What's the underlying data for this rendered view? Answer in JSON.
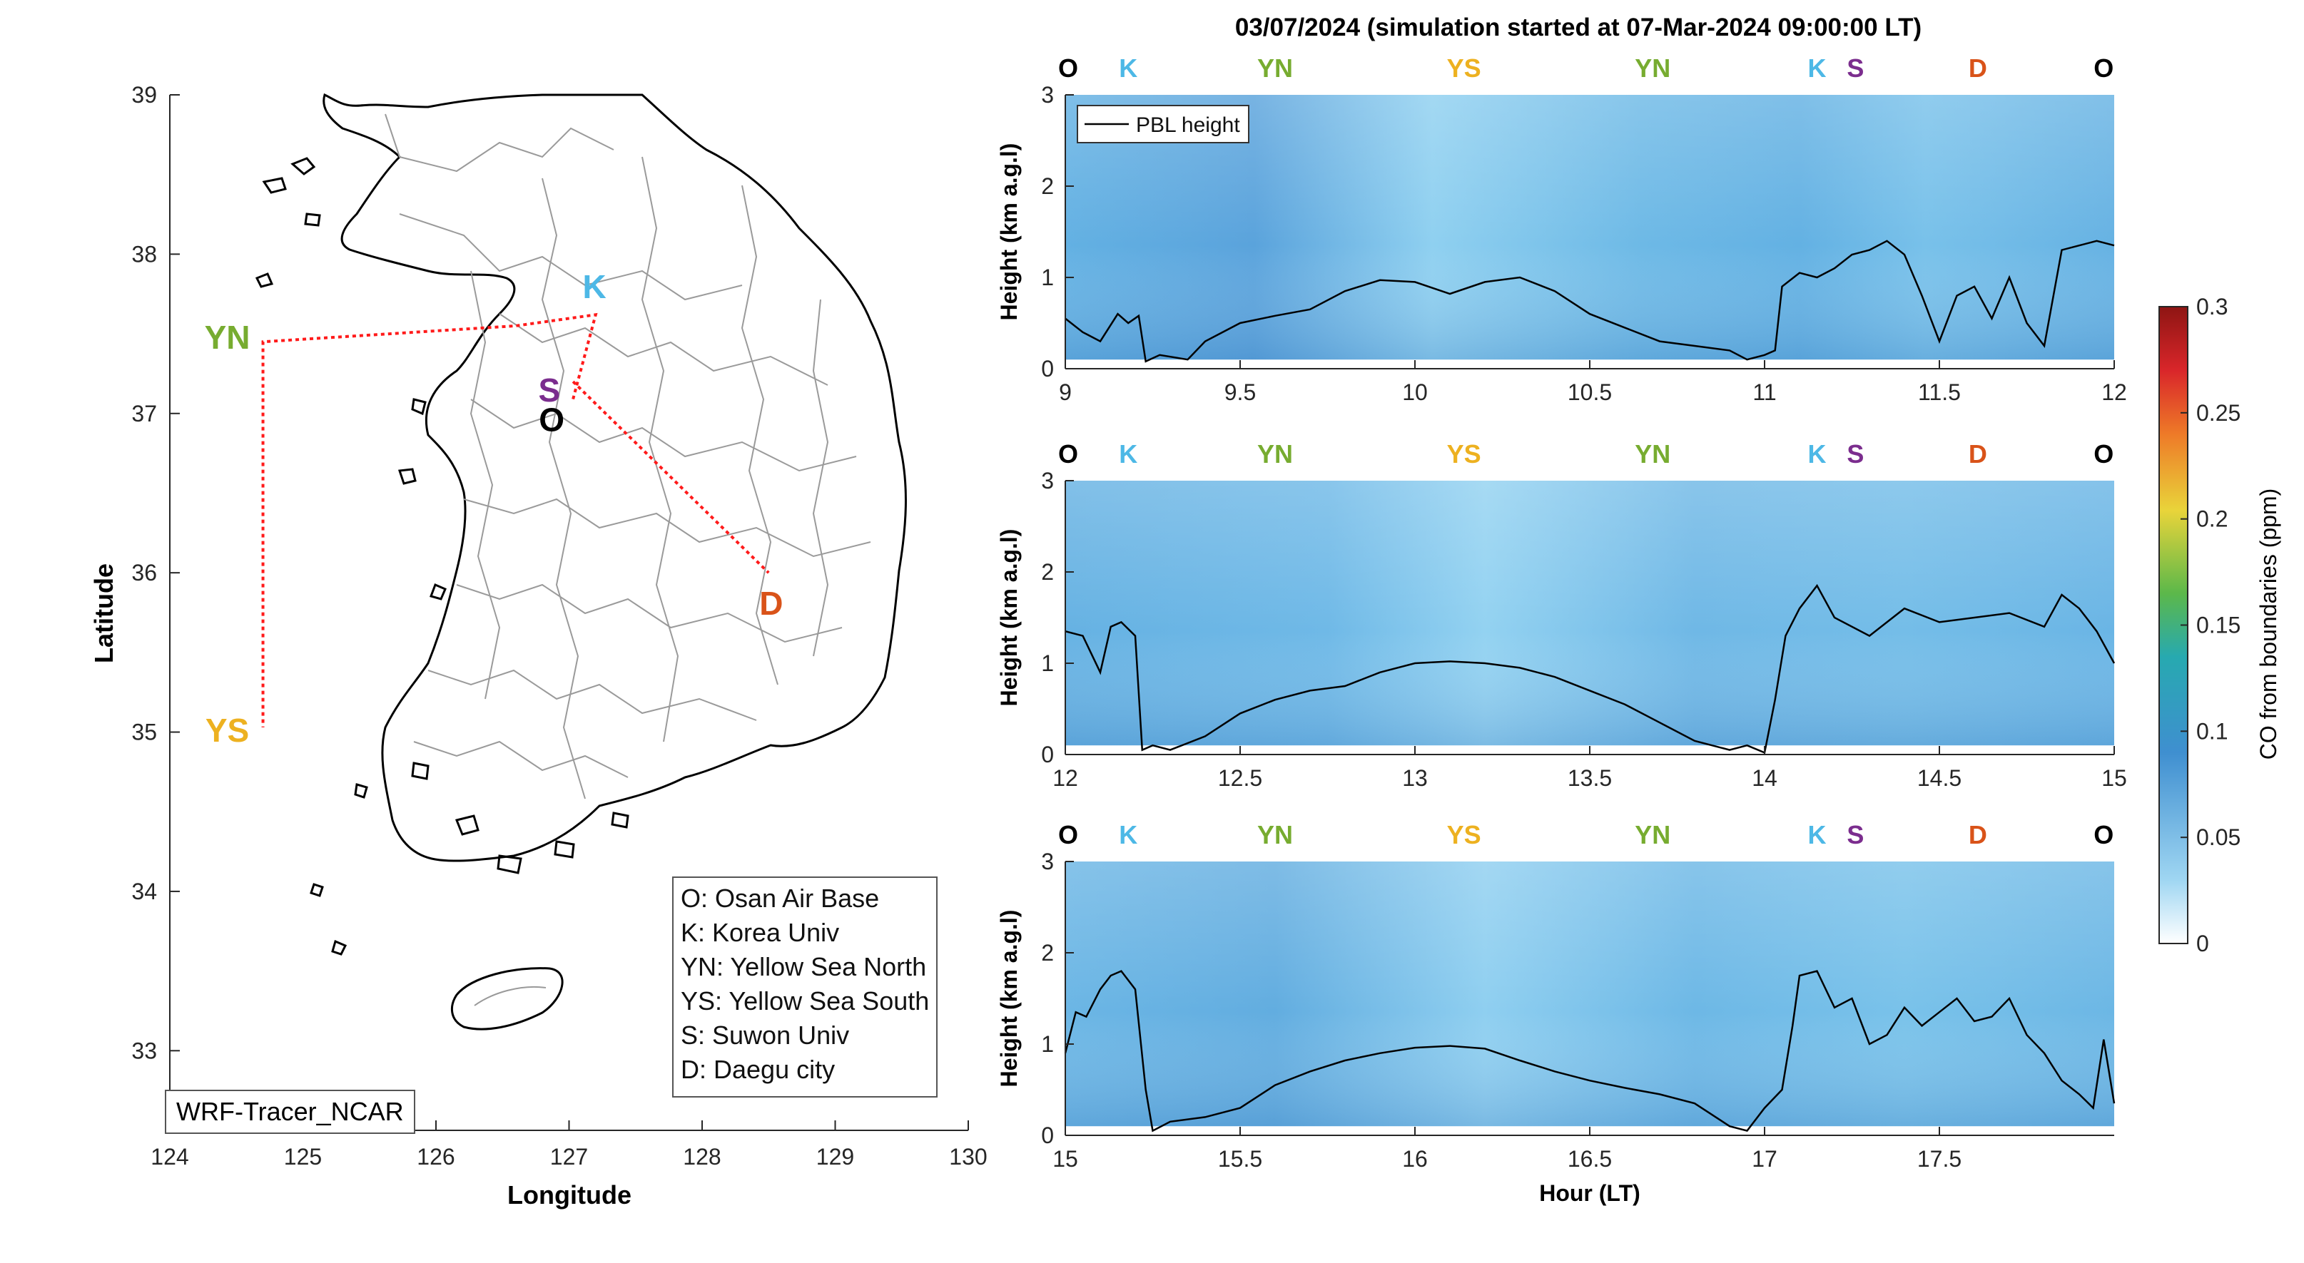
{
  "title": "03/07/2024 (simulation started at 07-Mar-2024 09:00:00 LT)",
  "map": {
    "xlabel": "Longitude",
    "ylabel": "Latitude",
    "xlim": [
      124,
      130
    ],
    "ylim": [
      32.5,
      39
    ],
    "xticks": [
      "124",
      "125",
      "126",
      "127",
      "128",
      "129",
      "130"
    ],
    "yticks": [
      "39",
      "38",
      "37",
      "36",
      "35",
      "34",
      "33"
    ],
    "credit": "WRF-Tracer_NCAR",
    "sites": [
      {
        "code": "K",
        "lon": 127.03,
        "lat": 37.59,
        "color": "#4db8e6"
      },
      {
        "code": "S",
        "lon": 126.97,
        "lat": 37.21,
        "color": "#7b2d8e"
      },
      {
        "code": "O",
        "lon": 127.03,
        "lat": 37.09,
        "color": "#000000"
      },
      {
        "code": "YN",
        "lon": 124.7,
        "lat": 37.45,
        "color": "#77ac30"
      },
      {
        "code": "YS",
        "lon": 124.7,
        "lat": 35.03,
        "color": "#edb120"
      },
      {
        "code": "D",
        "lon": 128.6,
        "lat": 35.87,
        "color": "#d95319"
      }
    ],
    "route": [
      [
        127.03,
        37.09
      ],
      [
        127.2,
        37.62
      ],
      [
        126.6,
        37.55
      ],
      [
        124.7,
        37.45
      ],
      [
        124.7,
        35.03
      ]
    ],
    "route2": [
      [
        127.03,
        37.2
      ],
      [
        128.5,
        36.0
      ]
    ],
    "legend": [
      "O: Osan Air Base",
      "K: Korea Univ",
      "YN: Yellow Sea North",
      "YS: Yellow Sea South",
      "S: Suwon Univ",
      "D: Daegu city"
    ]
  },
  "chart_data": {
    "type": "line",
    "title": "03/07/2024 (simulation started at 07-Mar-2024 09:00:00 LT)",
    "ylabel": "Height (km a.g.l)",
    "xlabel": "Hour (LT)",
    "legend": "PBL height",
    "colorbar": {
      "label": "CO from boundaries (ppm)",
      "range": [
        0,
        0.3
      ],
      "ticks": [
        "0.3",
        "0.25",
        "0.2",
        "0.15",
        "0.1",
        "0.05",
        "0"
      ]
    },
    "panels": [
      {
        "xlim": [
          9,
          12
        ],
        "ylim": [
          0,
          3
        ],
        "xticks": [
          "9",
          "9.5",
          "10",
          "10.5",
          "11",
          "11.5",
          "12"
        ],
        "yticks": [
          "0",
          "1",
          "2",
          "3"
        ],
        "markers": [
          {
            "code": "O",
            "x": 9.0
          },
          {
            "code": "K",
            "x": 9.18
          },
          {
            "code": "YN",
            "x": 9.6
          },
          {
            "code": "YS",
            "x": 10.14
          },
          {
            "code": "YN",
            "x": 10.68
          },
          {
            "code": "K",
            "x": 11.15
          },
          {
            "code": "S",
            "x": 11.26
          },
          {
            "code": "D",
            "x": 11.61
          },
          {
            "code": "O",
            "x": 11.97
          }
        ],
        "x": [
          9.0,
          9.05,
          9.1,
          9.15,
          9.18,
          9.21,
          9.23,
          9.27,
          9.35,
          9.4,
          9.5,
          9.6,
          9.7,
          9.8,
          9.9,
          10.0,
          10.1,
          10.2,
          10.3,
          10.4,
          10.5,
          10.6,
          10.7,
          10.8,
          10.9,
          10.95,
          11.0,
          11.03,
          11.05,
          11.1,
          11.15,
          11.2,
          11.25,
          11.3,
          11.35,
          11.4,
          11.45,
          11.5,
          11.55,
          11.6,
          11.65,
          11.7,
          11.75,
          11.8,
          11.85,
          11.9,
          11.95,
          12.0
        ],
        "y": [
          0.55,
          0.4,
          0.3,
          0.6,
          0.5,
          0.58,
          0.08,
          0.15,
          0.1,
          0.3,
          0.5,
          0.58,
          0.65,
          0.85,
          0.97,
          0.95,
          0.82,
          0.95,
          1.0,
          0.85,
          0.6,
          0.45,
          0.3,
          0.25,
          0.2,
          0.1,
          0.15,
          0.2,
          0.9,
          1.05,
          1.0,
          1.1,
          1.25,
          1.3,
          1.4,
          1.25,
          0.8,
          0.3,
          0.8,
          0.9,
          0.55,
          1.0,
          0.5,
          0.25,
          1.3,
          1.35,
          1.4,
          1.35
        ]
      },
      {
        "xlim": [
          12,
          15
        ],
        "ylim": [
          0,
          3
        ],
        "xticks": [
          "12",
          "12.5",
          "13",
          "13.5",
          "14",
          "14.5",
          "15"
        ],
        "yticks": [
          "0",
          "1",
          "2",
          "3"
        ],
        "markers": [
          {
            "code": "O",
            "x": 12.0
          },
          {
            "code": "K",
            "x": 12.18
          },
          {
            "code": "YN",
            "x": 12.6
          },
          {
            "code": "YS",
            "x": 13.14
          },
          {
            "code": "YN",
            "x": 13.68
          },
          {
            "code": "K",
            "x": 14.15
          },
          {
            "code": "S",
            "x": 14.26
          },
          {
            "code": "D",
            "x": 14.61
          },
          {
            "code": "O",
            "x": 14.97
          }
        ],
        "x": [
          12.0,
          12.05,
          12.1,
          12.13,
          12.16,
          12.2,
          12.22,
          12.25,
          12.3,
          12.4,
          12.5,
          12.6,
          12.7,
          12.8,
          12.9,
          13.0,
          13.1,
          13.2,
          13.3,
          13.4,
          13.5,
          13.6,
          13.7,
          13.8,
          13.9,
          13.95,
          14.0,
          14.03,
          14.06,
          14.1,
          14.15,
          14.2,
          14.3,
          14.4,
          14.5,
          14.6,
          14.7,
          14.8,
          14.85,
          14.9,
          14.95,
          15.0
        ],
        "y": [
          1.35,
          1.3,
          0.9,
          1.4,
          1.45,
          1.3,
          0.05,
          0.1,
          0.05,
          0.2,
          0.45,
          0.6,
          0.7,
          0.75,
          0.9,
          1.0,
          1.02,
          1.0,
          0.95,
          0.85,
          0.7,
          0.55,
          0.35,
          0.15,
          0.05,
          0.1,
          0.02,
          0.6,
          1.3,
          1.6,
          1.85,
          1.5,
          1.3,
          1.6,
          1.45,
          1.5,
          1.55,
          1.4,
          1.75,
          1.6,
          1.35,
          1.0
        ]
      },
      {
        "xlim": [
          15,
          18
        ],
        "ylim": [
          0,
          3
        ],
        "xticks": [
          "15",
          "15.5",
          "16",
          "16.5",
          "17",
          "17.5"
        ],
        "yticks": [
          "0",
          "1",
          "2",
          "3"
        ],
        "markers": [
          {
            "code": "O",
            "x": 15.0
          },
          {
            "code": "K",
            "x": 15.18
          },
          {
            "code": "YN",
            "x": 15.6
          },
          {
            "code": "YS",
            "x": 16.14
          },
          {
            "code": "YN",
            "x": 16.68
          },
          {
            "code": "K",
            "x": 17.15
          },
          {
            "code": "S",
            "x": 17.26
          },
          {
            "code": "D",
            "x": 17.61
          },
          {
            "code": "O",
            "x": 17.97
          }
        ],
        "x": [
          15.0,
          15.03,
          15.06,
          15.1,
          15.13,
          15.16,
          15.2,
          15.23,
          15.25,
          15.3,
          15.4,
          15.5,
          15.6,
          15.7,
          15.8,
          15.9,
          16.0,
          16.1,
          16.2,
          16.3,
          16.4,
          16.5,
          16.6,
          16.7,
          16.8,
          16.9,
          16.95,
          17.0,
          17.05,
          17.08,
          17.1,
          17.15,
          17.2,
          17.25,
          17.3,
          17.35,
          17.4,
          17.45,
          17.5,
          17.55,
          17.6,
          17.65,
          17.7,
          17.75,
          17.8,
          17.85,
          17.9,
          17.94,
          17.97,
          18.0
        ],
        "y": [
          0.9,
          1.35,
          1.3,
          1.6,
          1.75,
          1.8,
          1.6,
          0.5,
          0.05,
          0.15,
          0.2,
          0.3,
          0.55,
          0.7,
          0.82,
          0.9,
          0.96,
          0.98,
          0.95,
          0.82,
          0.7,
          0.6,
          0.52,
          0.45,
          0.35,
          0.1,
          0.05,
          0.3,
          0.5,
          1.2,
          1.75,
          1.8,
          1.4,
          1.5,
          1.0,
          1.1,
          1.4,
          1.2,
          1.35,
          1.5,
          1.25,
          1.3,
          1.5,
          1.1,
          0.9,
          0.6,
          0.45,
          0.3,
          1.05,
          0.35
        ]
      }
    ]
  }
}
